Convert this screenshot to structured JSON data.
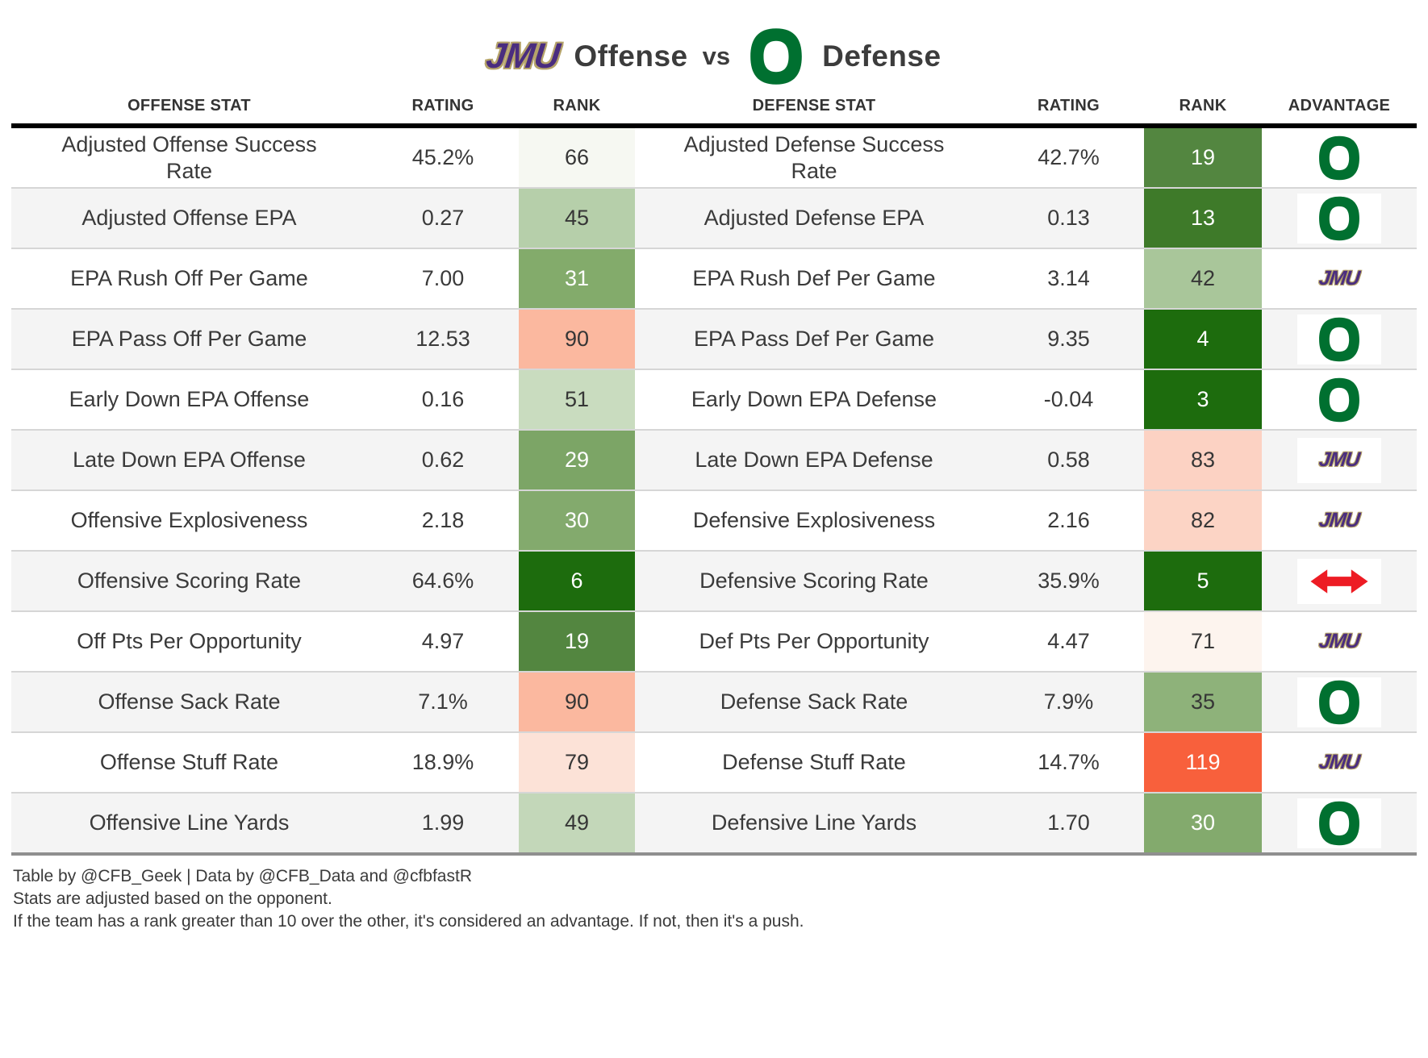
{
  "title": {
    "team1_wordmark": "JMU",
    "offense_label": "Offense",
    "vs_label": "vs",
    "defense_label": "Defense"
  },
  "header": {
    "offense_stat": "OFFENSE STAT",
    "offense_rating": "RATING",
    "offense_rank": "RANK",
    "defense_stat": "DEFENSE STAT",
    "defense_rating": "RATING",
    "defense_rank": "RANK",
    "advantage": "ADVANTAGE"
  },
  "colors": {
    "oregon_green": "#007030",
    "jmu_purple": "#4a2d7f",
    "jmu_gold": "#b5a36a",
    "push_red": "#ed1c24",
    "row_alt": "#f4f4f4",
    "separator": "#d6d6d6",
    "header_border": "#000000"
  },
  "rows": [
    {
      "offense_stat": "Adjusted Offense Success Rate",
      "offense_rating": "45.2%",
      "offense_rank": "66",
      "offense_rank_bg": "#f6f8f2",
      "offense_rank_text": "#363636",
      "defense_stat": "Adjusted Defense Success Rate",
      "defense_rating": "42.7%",
      "defense_rank": "19",
      "defense_rank_bg": "#538640",
      "defense_rank_text": "#ffffff",
      "advantage": "oregon"
    },
    {
      "offense_stat": "Adjusted Offense EPA",
      "offense_rating": "0.27",
      "offense_rank": "45",
      "offense_rank_bg": "#b6cfaa",
      "offense_rank_text": "#363636",
      "defense_stat": "Adjusted Defense EPA",
      "defense_rating": "0.13",
      "defense_rank": "13",
      "defense_rank_bg": "#3e7a29",
      "defense_rank_text": "#ffffff",
      "advantage": "oregon"
    },
    {
      "offense_stat": "EPA Rush Off Per Game",
      "offense_rating": "7.00",
      "offense_rank": "31",
      "offense_rank_bg": "#83ab6b",
      "offense_rank_text": "#ffffff",
      "defense_stat": "EPA Rush Def Per Game",
      "defense_rating": "3.14",
      "defense_rank": "42",
      "defense_rank_bg": "#a9c69a",
      "defense_rank_text": "#363636",
      "advantage": "jmu"
    },
    {
      "offense_stat": "EPA Pass Off Per Game",
      "offense_rating": "12.53",
      "offense_rank": "90",
      "offense_rank_bg": "#fbb89f",
      "offense_rank_text": "#363636",
      "defense_stat": "EPA Pass Def Per Game",
      "defense_rating": "9.35",
      "defense_rank": "4",
      "defense_rank_bg": "#1d6c0d",
      "defense_rank_text": "#ffffff",
      "advantage": "oregon"
    },
    {
      "offense_stat": "Early Down EPA Offense",
      "offense_rating": "0.16",
      "offense_rank": "51",
      "offense_rank_bg": "#c9dcbf",
      "offense_rank_text": "#363636",
      "defense_stat": "Early Down EPA Defense",
      "defense_rating": "-0.04",
      "defense_rank": "3",
      "defense_rank_bg": "#1d6c0d",
      "defense_rank_text": "#ffffff",
      "advantage": "oregon"
    },
    {
      "offense_stat": "Late Down EPA Offense",
      "offense_rating": "0.62",
      "offense_rank": "29",
      "offense_rank_bg": "#7ca566",
      "offense_rank_text": "#ffffff",
      "defense_stat": "Late Down EPA Defense",
      "defense_rating": "0.58",
      "defense_rank": "83",
      "defense_rank_bg": "#fcd2c3",
      "defense_rank_text": "#363636",
      "advantage": "jmu"
    },
    {
      "offense_stat": "Offensive Explosiveness",
      "offense_rating": "2.18",
      "offense_rank": "30",
      "offense_rank_bg": "#83aa6d",
      "offense_rank_text": "#ffffff",
      "defense_stat": "Defensive Explosiveness",
      "defense_rating": "2.16",
      "defense_rank": "82",
      "defense_rank_bg": "#fcd4c5",
      "defense_rank_text": "#363636",
      "advantage": "jmu"
    },
    {
      "offense_stat": "Offensive Scoring Rate",
      "offense_rating": "64.6%",
      "offense_rank": "6",
      "offense_rank_bg": "#1d6c0d",
      "offense_rank_text": "#ffffff",
      "defense_stat": "Defensive Scoring Rate",
      "defense_rating": "35.9%",
      "defense_rank": "5",
      "defense_rank_bg": "#1d6c0d",
      "defense_rank_text": "#ffffff",
      "advantage": "push"
    },
    {
      "offense_stat": "Off Pts Per Opportunity",
      "offense_rating": "4.97",
      "offense_rank": "19",
      "offense_rank_bg": "#538640",
      "offense_rank_text": "#ffffff",
      "defense_stat": "Def Pts Per Opportunity",
      "defense_rating": "4.47",
      "defense_rank": "71",
      "defense_rank_bg": "#fdf4ee",
      "defense_rank_text": "#363636",
      "advantage": "jmu"
    },
    {
      "offense_stat": "Offense Sack Rate",
      "offense_rating": "7.1%",
      "offense_rank": "90",
      "offense_rank_bg": "#fbb89f",
      "offense_rank_text": "#363636",
      "defense_stat": "Defense Sack Rate",
      "defense_rating": "7.9%",
      "defense_rank": "35",
      "defense_rank_bg": "#8eb27a",
      "defense_rank_text": "#363636",
      "advantage": "oregon"
    },
    {
      "offense_stat": "Offense Stuff Rate",
      "offense_rating": "18.9%",
      "offense_rank": "79",
      "offense_rank_bg": "#fce2d7",
      "offense_rank_text": "#363636",
      "defense_stat": "Defense Stuff Rate",
      "defense_rating": "14.7%",
      "defense_rank": "119",
      "defense_rank_bg": "#f8603c",
      "defense_rank_text": "#ffffff",
      "advantage": "jmu"
    },
    {
      "offense_stat": "Offensive Line Yards",
      "offense_rating": "1.99",
      "offense_rank": "49",
      "offense_rank_bg": "#c3d7b9",
      "offense_rank_text": "#363636",
      "defense_stat": "Defensive Line Yards",
      "defense_rating": "1.70",
      "defense_rank": "30",
      "defense_rank_bg": "#83aa6d",
      "defense_rank_text": "#ffffff",
      "advantage": "oregon"
    }
  ],
  "footer": {
    "line1": "Table by @CFB_Geek | Data by @CFB_Data and @cfbfastR",
    "line2": "Stats are adjusted based on the opponent.",
    "line3": "If the team has a rank greater than 10 over the other, it's considered an advantage. If not, then it's a push."
  }
}
